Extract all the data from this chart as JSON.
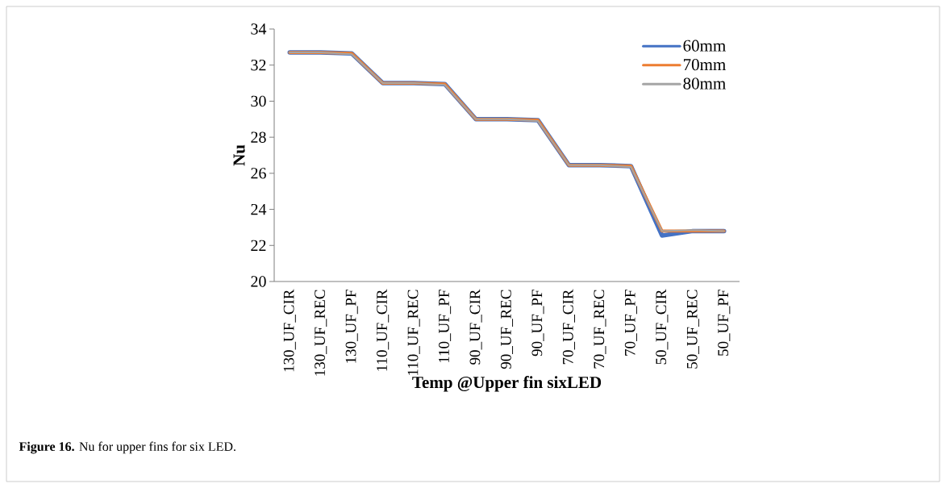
{
  "chart_data": {
    "type": "line",
    "xlabel": "Temp @Upper fin sixLED",
    "ylabel": "Nu",
    "categories": [
      "130_UF_CIR",
      "130_UF_REC",
      "130_UF_PF",
      "110_UF_CIR",
      "110_UF_REC",
      "110_UF_PF",
      "90_UF_CIR",
      "90_UF_REC",
      "90_UF_PF",
      "70_UF_CIR",
      "70_UF_REC",
      "70_UF_PF",
      "50_UF_CIR",
      "50_UF_REC",
      "50_UF_PF"
    ],
    "series": [
      {
        "name": "60mm",
        "color": "#4472c4",
        "values": [
          32.7,
          32.7,
          32.65,
          31.0,
          31.0,
          30.95,
          29.0,
          29.0,
          28.95,
          26.45,
          26.45,
          26.4,
          22.55,
          22.8,
          22.8
        ]
      },
      {
        "name": "70mm",
        "color": "#ed7d31",
        "values": [
          32.7,
          32.7,
          32.65,
          31.0,
          31.0,
          30.95,
          29.0,
          29.0,
          28.95,
          26.45,
          26.45,
          26.4,
          22.8,
          22.8,
          22.8
        ]
      },
      {
        "name": "80mm",
        "color": "#a5a5a5",
        "values": [
          32.7,
          32.7,
          32.6,
          31.0,
          31.0,
          30.9,
          29.0,
          29.0,
          28.9,
          26.45,
          26.45,
          26.35,
          22.8,
          22.85,
          22.8
        ]
      }
    ],
    "ylim": [
      20,
      34
    ],
    "yticks": [
      20,
      22,
      24,
      26,
      28,
      30,
      32,
      34
    ],
    "grid": false,
    "legend": "top right",
    "marker": "none",
    "line_style": "solid",
    "annotations": [
      "**Figure 16.** Nu for upper fins for six LED."
    ]
  }
}
